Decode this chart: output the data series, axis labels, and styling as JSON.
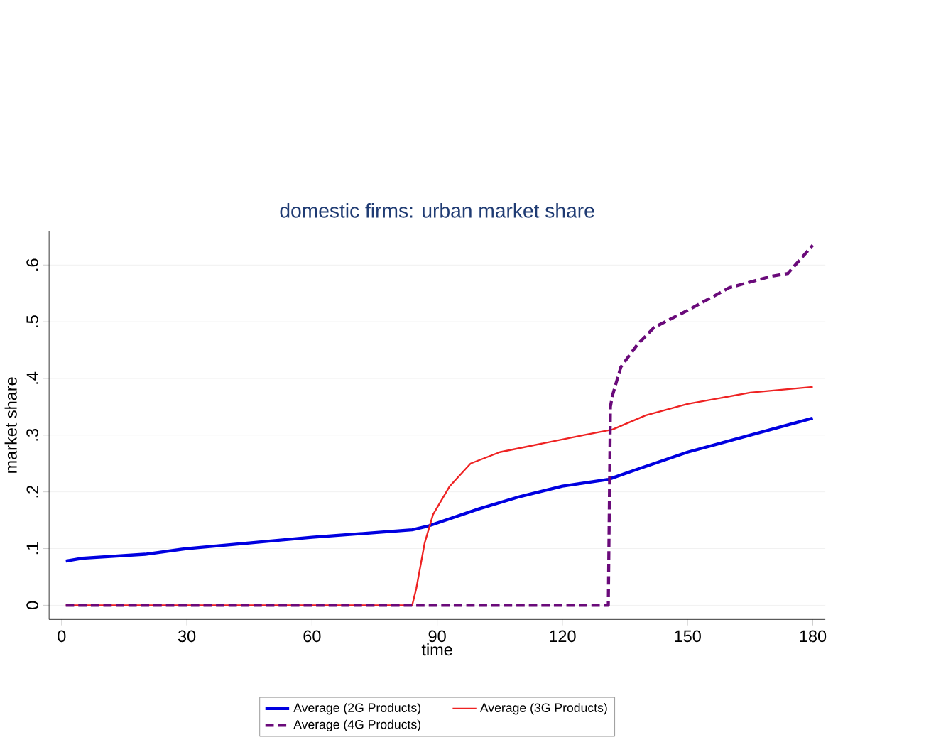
{
  "chart_data": {
    "type": "line",
    "title": "domestic firms: urban market share",
    "xlabel": "time",
    "ylabel": "market share",
    "xlim": [
      -3,
      183
    ],
    "ylim": [
      -0.025,
      0.66
    ],
    "xticks": [
      0,
      30,
      60,
      90,
      120,
      150,
      180
    ],
    "yticks": [
      0,
      {
        "value": 0.1,
        "label": ".1"
      },
      {
        "value": 0.2,
        "label": ".2"
      },
      {
        "value": 0.3,
        "label": ".3"
      },
      {
        "value": 0.4,
        "label": ".4"
      },
      {
        "value": 0.5,
        "label": ".5"
      },
      {
        "value": 0.6,
        "label": ".6"
      }
    ],
    "grid": "y",
    "legend": "bottom",
    "series": [
      {
        "name": "Average (2G Products)",
        "color": "#0000e0",
        "line_style": "solid",
        "x": [
          1,
          5,
          20,
          30,
          45,
          60,
          75,
          84,
          88,
          100,
          110,
          120,
          131,
          138,
          150,
          165,
          180
        ],
        "values": [
          0.078,
          0.083,
          0.09,
          0.1,
          0.11,
          0.12,
          0.128,
          0.133,
          0.14,
          0.17,
          0.192,
          0.21,
          0.222,
          0.24,
          0.27,
          0.3,
          0.33
        ]
      },
      {
        "name": "Average (3G Products)",
        "color": "#ee2222",
        "line_style": "solid",
        "x": [
          1,
          84,
          85,
          87,
          89,
          93,
          98,
          105,
          115,
          125,
          132,
          140,
          150,
          165,
          180
        ],
        "values": [
          0,
          0,
          0.03,
          0.11,
          0.16,
          0.21,
          0.25,
          0.27,
          0.285,
          0.3,
          0.31,
          0.335,
          0.355,
          0.375,
          0.385
        ]
      },
      {
        "name": "Average (4G Products)",
        "color": "#6a0a7a",
        "line_style": "dashed",
        "x": [
          1,
          131,
          131.5,
          132,
          134,
          138,
          142,
          150,
          160,
          170,
          174,
          177,
          180
        ],
        "values": [
          0,
          0,
          0.35,
          0.37,
          0.42,
          0.46,
          0.49,
          0.52,
          0.56,
          0.58,
          0.585,
          0.61,
          0.635
        ]
      }
    ]
  }
}
